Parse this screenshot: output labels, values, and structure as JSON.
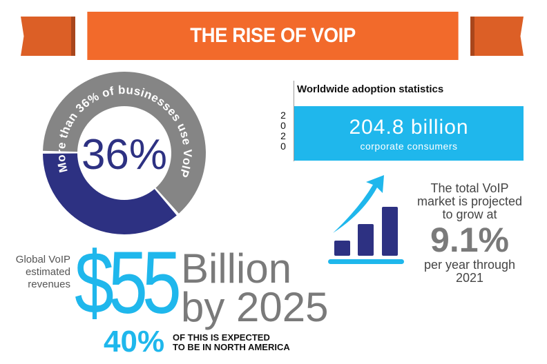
{
  "banner": {
    "title": "THE RISE OF VOIP"
  },
  "donut": {
    "percent_label": "36%",
    "value": 36,
    "arc_text": "More than 36% of businesses use VoIP",
    "colors": {
      "filled": "#2d3182",
      "rest": "#858585"
    }
  },
  "adoption": {
    "title": "Worldwide adoption statistics",
    "year": "2020",
    "value": "204.8 billion",
    "label": "corporate consumers",
    "color": "#1fb7ec"
  },
  "growth": {
    "text_before": "The total VoIP market is projected to grow at",
    "percent": "9.1%",
    "text_after": "per year through 2021",
    "icon": "bar-chart-growth-arrow-icon"
  },
  "revenue": {
    "label": "Global VoIP estimated revenues",
    "amount": "$55",
    "unit_line1": "Billion",
    "unit_line2": "by 2025"
  },
  "north_america": {
    "percent": "40%",
    "line1": "OF THIS IS EXPECTED",
    "line2": "TO BE IN NORTH AMERICA"
  }
}
